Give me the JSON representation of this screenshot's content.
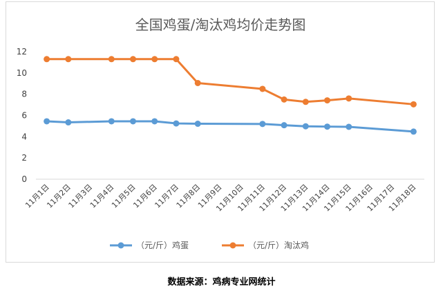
{
  "chart_data": {
    "type": "line",
    "title": "全国鸡蛋/淘汰鸡均价走势图",
    "categories": [
      "11月1日",
      "11月2日",
      "11月3日",
      "11月4日",
      "11月5日",
      "11月6日",
      "11月7日",
      "11月8日",
      "11月9日",
      "11月10日",
      "11月11日",
      "11月12日",
      "11月13日",
      "11月14日",
      "11月15日",
      "11月16日",
      "11月17日",
      "11月18日"
    ],
    "series": [
      {
        "name": "（元/斤）鸡蛋",
        "color": "#5B9BD5",
        "values": [
          5.45,
          5.35,
          null,
          5.45,
          5.45,
          5.45,
          5.25,
          5.22,
          null,
          null,
          5.2,
          5.08,
          4.98,
          4.95,
          4.93,
          null,
          null,
          4.48
        ]
      },
      {
        "name": "（元/斤）淘汰鸡",
        "color": "#ED7D31",
        "values": [
          11.3,
          11.3,
          null,
          11.3,
          11.3,
          11.3,
          11.3,
          9.05,
          null,
          null,
          8.5,
          7.5,
          7.28,
          7.42,
          7.6,
          null,
          null,
          7.05
        ]
      }
    ],
    "ylim": [
      0,
      12
    ],
    "yticks": [
      0,
      2,
      4,
      6,
      8,
      10,
      12
    ],
    "grid": false,
    "legend": "bottom"
  },
  "source_text": "数据来源：鸡病专业网统计"
}
